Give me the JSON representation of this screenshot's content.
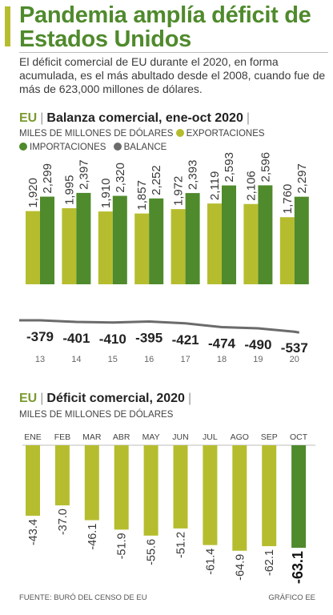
{
  "headline": "Pandemia amplía déficit de Estados Unidos",
  "intro": "El déficit comercial de EU durante el 2020, en forma acumulada, es el más abultado desde el 2008, cuando fue de más de 623,000 millones de dólares.",
  "colors": {
    "accent": "#4f8a2c",
    "exports": "#b5bd2f",
    "imports": "#4f8a2c",
    "balance": "#6b6b6b"
  },
  "chart1": {
    "eu": "EU",
    "title": "Balanza comercial, ene-oct 2020",
    "subtitle": "MILES DE MILLONES DE DÓLARES",
    "legend": {
      "exports": "EXPORTACIONES",
      "imports": "IMPORTACIONES",
      "balance": "BALANCE"
    }
  },
  "chart2": {
    "eu": "EU",
    "title": "Déficit comercial, 2020",
    "subtitle": "MILES DE MILLONES DE DÓLARES"
  },
  "footer": {
    "source": "FUENTE: BURÓ DEL CENSO DE EU",
    "credit": "GRÁFICO EE"
  },
  "chart_data": [
    {
      "type": "bar",
      "title": "Balanza comercial, ene-oct 2020",
      "categories": [
        "13",
        "14",
        "15",
        "16",
        "17",
        "18",
        "19",
        "20"
      ],
      "series": [
        {
          "name": "EXPORTACIONES",
          "values": [
            1920,
            1995,
            1910,
            1857,
            1972,
            2119,
            2106,
            1760
          ],
          "labels": [
            "1,920",
            "1,995",
            "1,910",
            "1,857",
            "1,972",
            "2,119",
            "2,106",
            "1,760"
          ]
        },
        {
          "name": "IMPORTACIONES",
          "values": [
            2299,
            2397,
            2320,
            2252,
            2393,
            2593,
            2596,
            2297
          ],
          "labels": [
            "2,299",
            "2,397",
            "2,320",
            "2,252",
            "2,393",
            "2,593",
            "2,596",
            "2,297"
          ]
        },
        {
          "name": "BALANCE",
          "values": [
            -379,
            -401,
            -410,
            -395,
            -421,
            -474,
            -490,
            -537
          ]
        }
      ]
    },
    {
      "type": "bar",
      "title": "Déficit comercial, 2020",
      "categories": [
        "ENE",
        "FEB",
        "MAR",
        "ABR",
        "MAY",
        "JUN",
        "JUL",
        "AGO",
        "SEP",
        "OCT"
      ],
      "values": [
        -43.4,
        -37.0,
        -46.1,
        -51.9,
        -55.6,
        -51.2,
        -61.4,
        -64.9,
        -62.1,
        -63.1
      ],
      "labels": [
        "-43.4",
        "-37.0",
        "-46.1",
        "-51.9",
        "-55.6",
        "-51.2",
        "-61.4",
        "-64.9",
        "-62.1",
        "-63.1"
      ],
      "highlight": "OCT"
    }
  ]
}
